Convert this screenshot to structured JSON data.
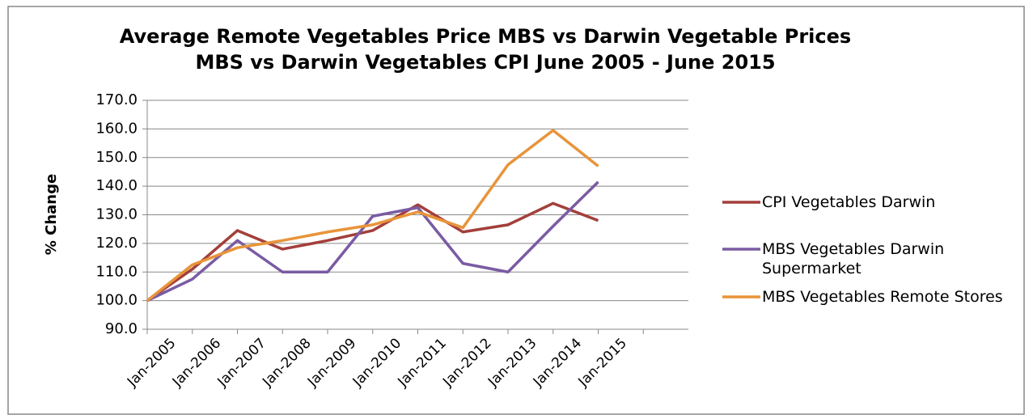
{
  "chart_data": {
    "type": "line",
    "title": "Average Remote Vegetables Price MBS vs Darwin Vegetable Prices",
    "subtitle": "MBS vs Darwin Vegetables CPI  June 2005 - June 2015",
    "y_label": "% Change",
    "categories": [
      "Jan-2005",
      "Jan-2006",
      "Jan-2007",
      "Jan-2008",
      "Jan-2009",
      "Jan-2010",
      "Jan-2011",
      "Jan-2012",
      "Jan-2013",
      "Jan-2014",
      "Jan-2015"
    ],
    "series": [
      {
        "name": "CPI Vegetables Darwin",
        "color": "#a33f3b",
        "values": [
          100,
          111,
          124.5,
          118,
          121,
          124.5,
          133.5,
          124,
          126.5,
          134,
          128
        ]
      },
      {
        "name": "MBS Vegetables Darwin Supermarket",
        "color": "#7a5ba3",
        "values": [
          100,
          107.5,
          121,
          110,
          110,
          129.5,
          132.5,
          113,
          110,
          126,
          141.5
        ]
      },
      {
        "name": "MBS Vegetables Remote Stores",
        "color": "#e8943a",
        "values": [
          100,
          112.5,
          118.5,
          121,
          124,
          126.5,
          131,
          125.5,
          147.5,
          159.5,
          147
        ]
      }
    ],
    "ylim": [
      90,
      170
    ],
    "yticks": [
      {
        "value": 90,
        "label": "90.0"
      },
      {
        "value": 100,
        "label": "100.0"
      },
      {
        "value": 110,
        "label": "110.0"
      },
      {
        "value": 120,
        "label": "120.0"
      },
      {
        "value": 130,
        "label": "130.0"
      },
      {
        "value": 140,
        "label": "140.0"
      },
      {
        "value": 150,
        "label": "150.0"
      },
      {
        "value": 160,
        "label": "160.0"
      },
      {
        "value": 170,
        "label": "170.0"
      }
    ],
    "grid": true,
    "legend": "right"
  }
}
